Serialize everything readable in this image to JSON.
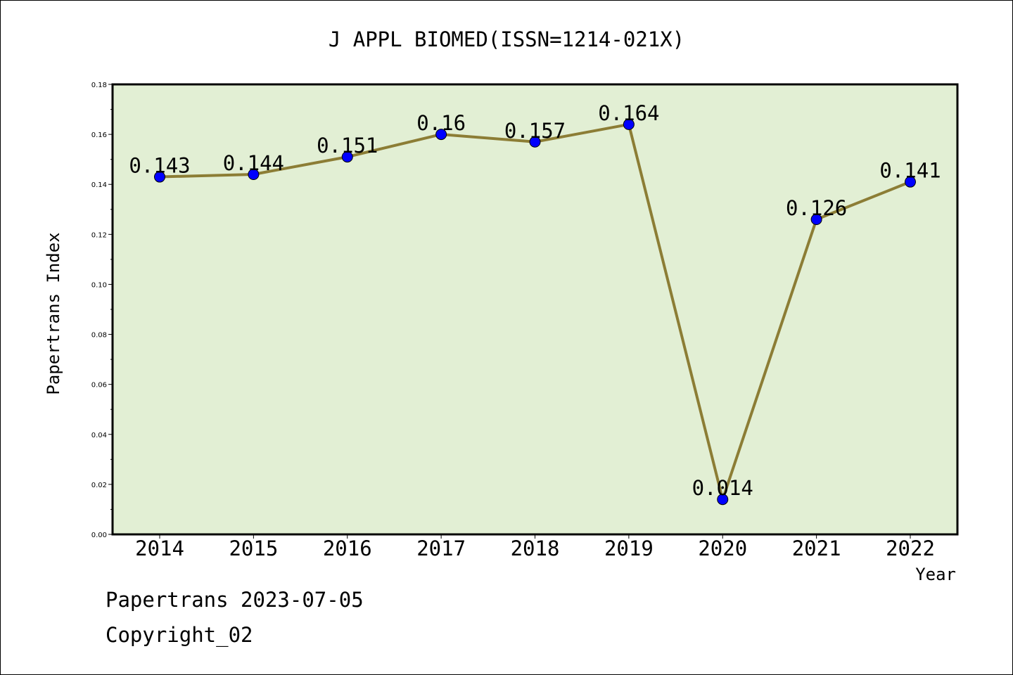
{
  "chart_data": {
    "type": "line",
    "title": "J APPL BIOMED(ISSN=1214-021X)",
    "xlabel": "Year",
    "ylabel": "Papertrans Index",
    "categories": [
      "2014",
      "2015",
      "2016",
      "2017",
      "2018",
      "2019",
      "2020",
      "2021",
      "2022"
    ],
    "values": [
      0.143,
      0.144,
      0.151,
      0.16,
      0.157,
      0.164,
      0.014,
      0.126,
      0.141
    ],
    "data_labels": [
      "0.143",
      "0.144",
      "0.151",
      "0.16",
      "0.157",
      "0.164",
      "0.014",
      "0.126",
      "0.141"
    ],
    "ylim": [
      0,
      0.18
    ],
    "yticks": [
      "0.00",
      "0.02",
      "0.04",
      "0.06",
      "0.08",
      "0.10",
      "0.12",
      "0.14",
      "0.16",
      "0.18"
    ],
    "grid": false,
    "legend": "none",
    "colors": {
      "plot_background": "#e2efd4",
      "line": "#8c7d35",
      "marker": "#0000ff"
    }
  },
  "footer": {
    "line1": "Papertrans 2023-07-05",
    "line2": "Copyright_02"
  }
}
